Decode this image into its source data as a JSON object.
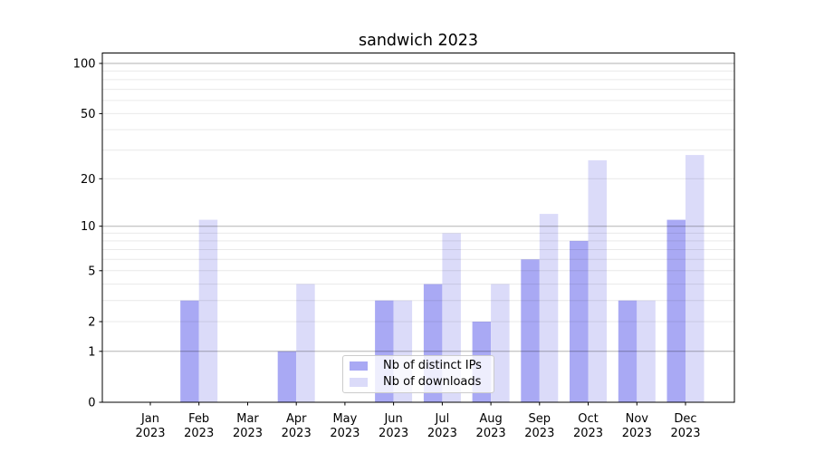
{
  "title": "sandwich 2023",
  "legend": {
    "items": [
      {
        "label": "Nb of distinct IPs",
        "color": "#a9a9f4"
      },
      {
        "label": "Nb of downloads",
        "color": "#dbdbf9"
      }
    ]
  },
  "chart_data": {
    "type": "bar",
    "title": "sandwich 2023",
    "categories": [
      "Jan",
      "Feb",
      "Mar",
      "Apr",
      "May",
      "Jun",
      "Jul",
      "Aug",
      "Sep",
      "Oct",
      "Nov",
      "Dec"
    ],
    "year_label": "2023",
    "series": [
      {
        "name": "Nb of distinct IPs",
        "color": "#a9a9f4",
        "values": [
          0,
          3,
          0,
          1,
          0,
          3,
          4,
          2,
          6,
          8,
          3,
          11
        ]
      },
      {
        "name": "Nb of downloads",
        "color": "#dbdbf9",
        "values": [
          0,
          11,
          0,
          4,
          0,
          3,
          9,
          4,
          12,
          26,
          3,
          28
        ]
      }
    ],
    "yscale": "symlog-ln(1+x)",
    "ylim": [
      0,
      116
    ],
    "y_axis_ticks": [
      0,
      1,
      2,
      5,
      10,
      20,
      50,
      100
    ],
    "y_tick_labels": [
      "0",
      "1",
      "2",
      "5",
      "10",
      "20",
      "50",
      "100"
    ],
    "y_major_gridlines": [
      1,
      10,
      100
    ],
    "y_minor_gridlines": [
      2,
      3,
      4,
      5,
      6,
      7,
      8,
      9,
      20,
      30,
      40,
      50,
      60,
      70,
      80,
      90
    ],
    "grid": "on",
    "legend_position": "lower center",
    "xlabel": "",
    "ylabel": ""
  }
}
